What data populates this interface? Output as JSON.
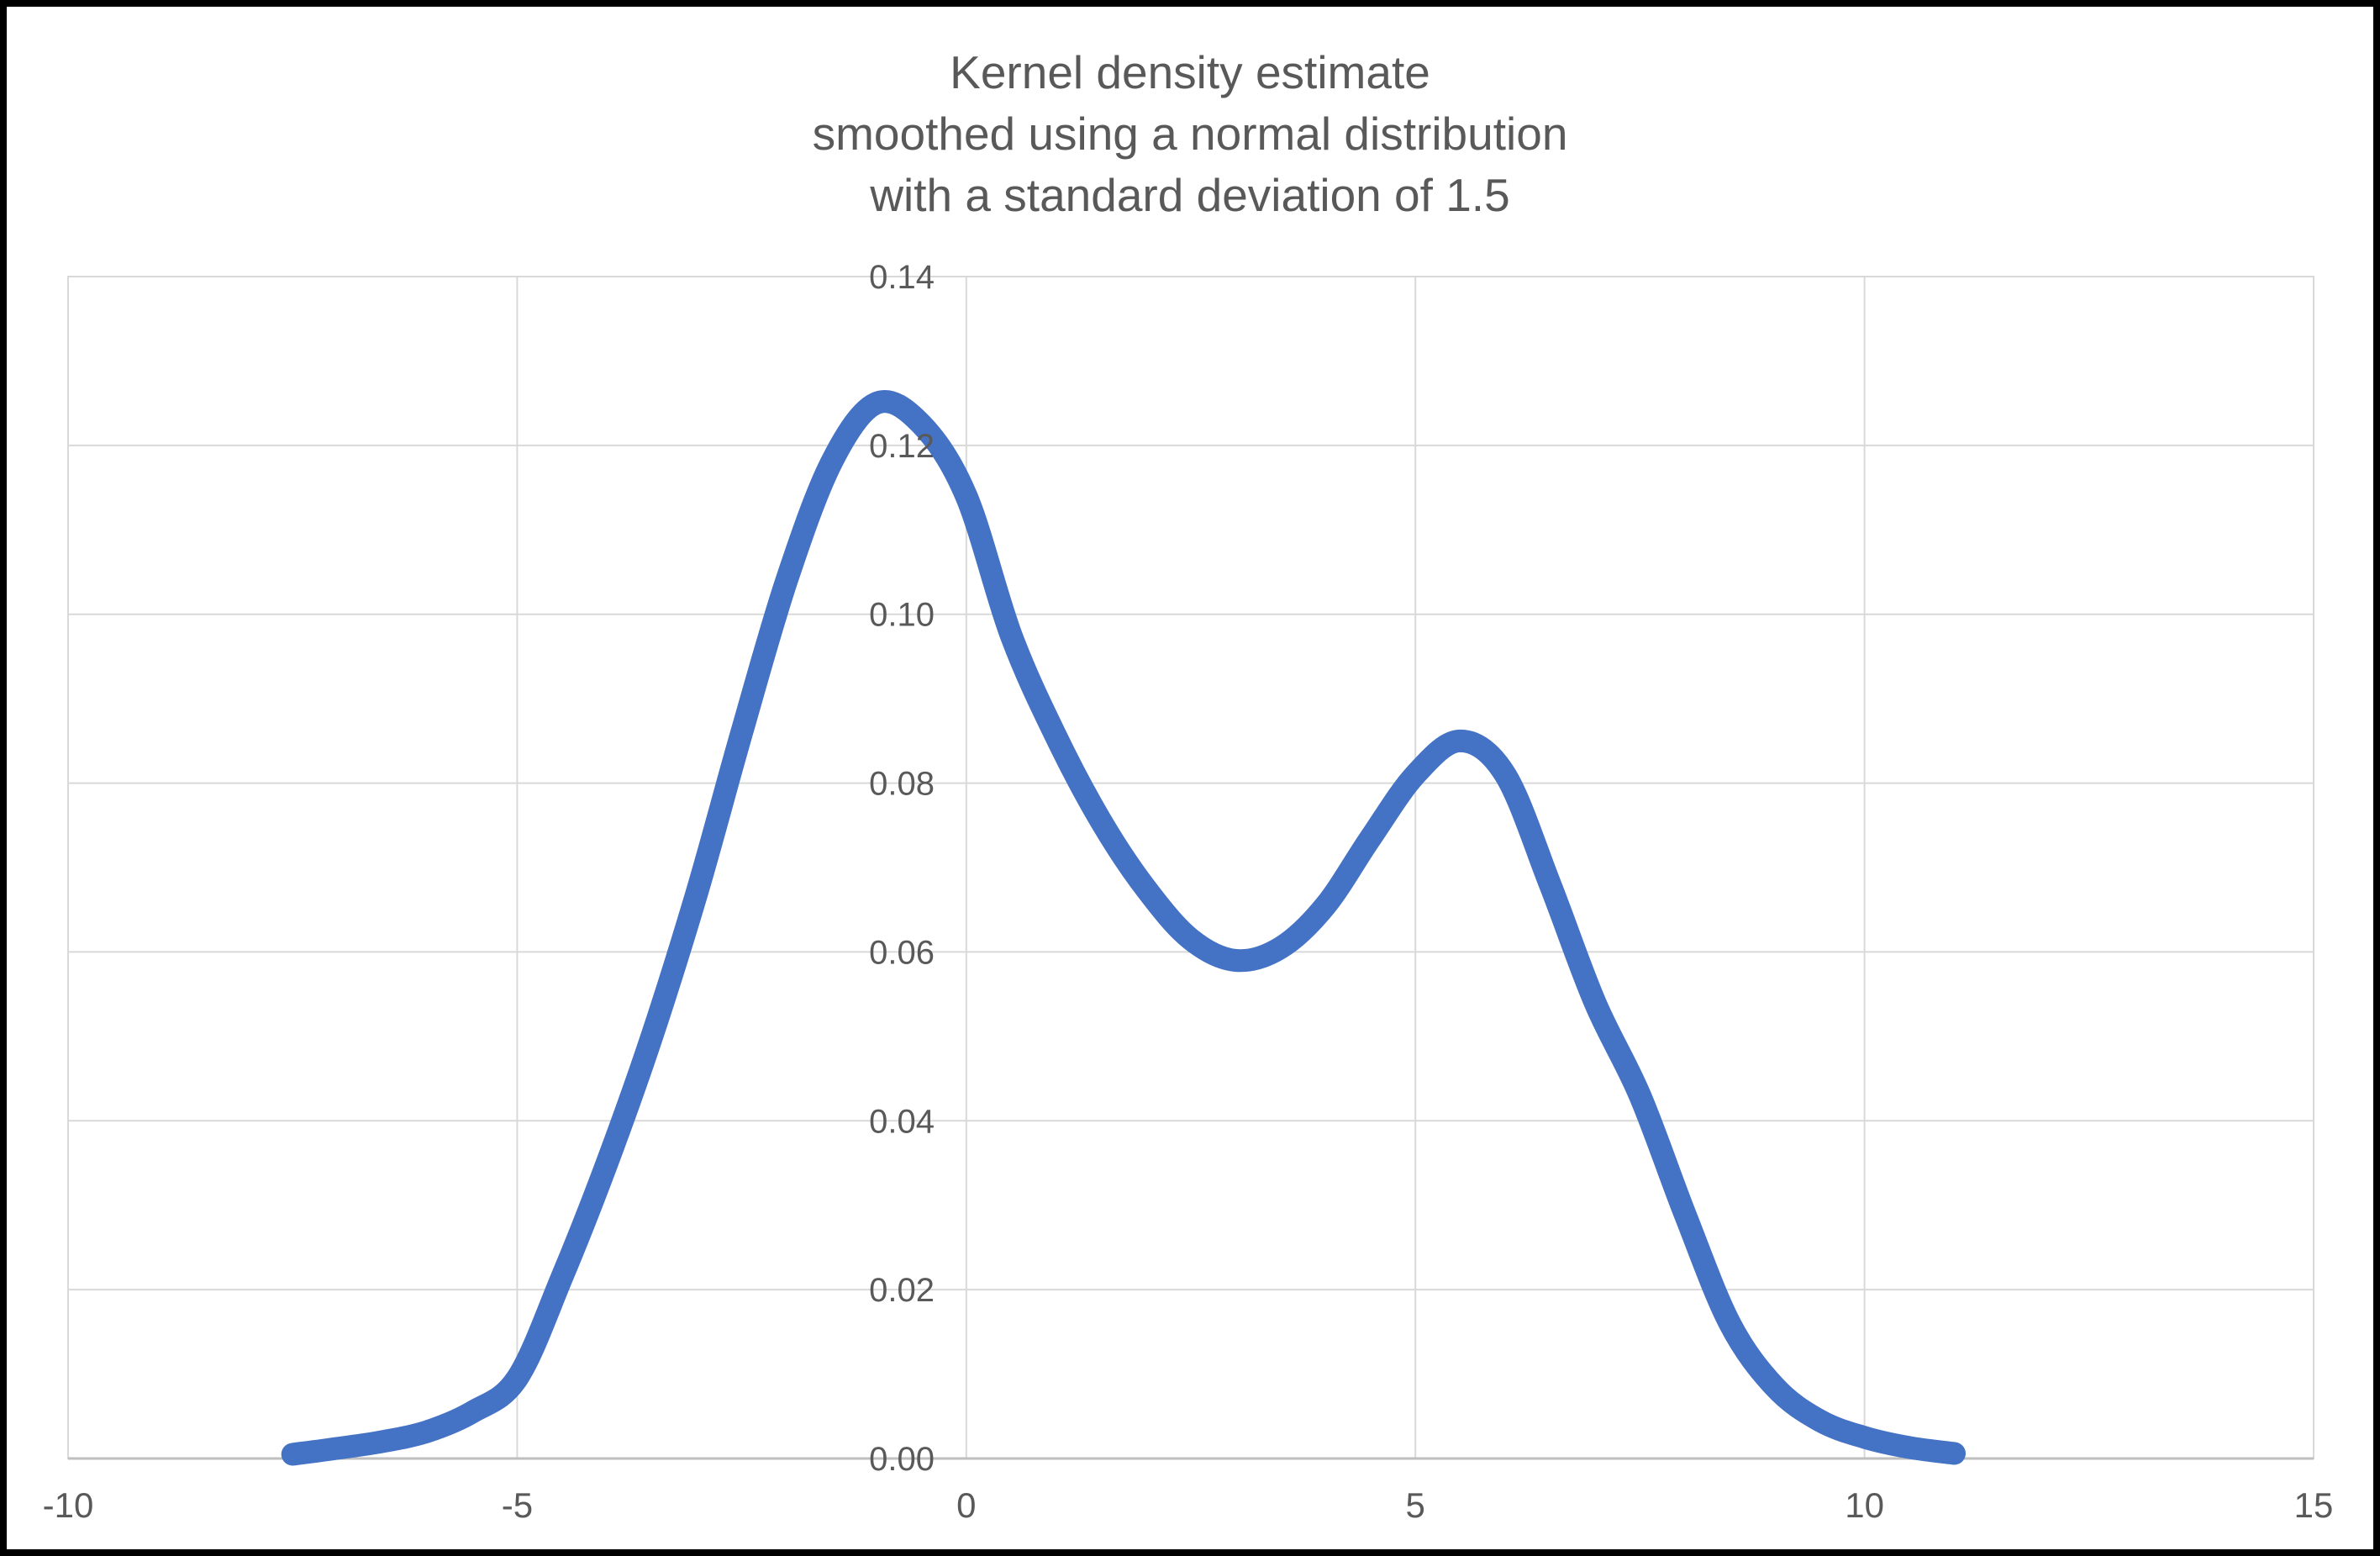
{
  "window": {
    "background": "#FFFFFF",
    "border_color": "#000000"
  },
  "chart_data": {
    "type": "line",
    "title": "Kernel density estimate smoothed using a normal distribution with a standard deviation of 1.5",
    "title_lines": [
      "Kernel density estimate",
      "smoothed using a normal distribution",
      "with a standard deviation of 1.5"
    ],
    "xlabel": "",
    "ylabel": "",
    "xlim": [
      -10,
      15
    ],
    "ylim": [
      0,
      0.14
    ],
    "x_ticks": [
      "-10",
      "-5",
      "0",
      "5",
      "10",
      "15"
    ],
    "x_tick_values": [
      -10,
      -5,
      0,
      5,
      10,
      15
    ],
    "y_ticks": [
      "0.00",
      "0.02",
      "0.04",
      "0.06",
      "0.08",
      "0.10",
      "0.12",
      "0.14"
    ],
    "y_tick_values": [
      0,
      0.02,
      0.04,
      0.06,
      0.08,
      0.1,
      0.12,
      0.14
    ],
    "grid": true,
    "legend_position": "none",
    "series": [
      {
        "name": "Kernel density estimate",
        "color": "#4472C4",
        "stroke_width_px": 27,
        "points": [
          [
            -7.5,
            0.0005
          ],
          [
            -7.0,
            0.0012
          ],
          [
            -6.5,
            0.002
          ],
          [
            -6.0,
            0.0032
          ],
          [
            -5.5,
            0.0055
          ],
          [
            -5.0,
            0.0095
          ],
          [
            -4.5,
            0.0215
          ],
          [
            -4.0,
            0.035
          ],
          [
            -3.5,
            0.05
          ],
          [
            -3.0,
            0.067
          ],
          [
            -2.5,
            0.086
          ],
          [
            -2.0,
            0.104
          ],
          [
            -1.5,
            0.118
          ],
          [
            -1.0,
            0.125
          ],
          [
            -0.5,
            0.1225
          ],
          [
            0.0,
            0.114
          ],
          [
            0.5,
            0.0975
          ],
          [
            1.0,
            0.0855
          ],
          [
            1.5,
            0.0755
          ],
          [
            2.0,
            0.0675
          ],
          [
            2.5,
            0.0615
          ],
          [
            3.0,
            0.059
          ],
          [
            3.5,
            0.0605
          ],
          [
            4.0,
            0.0655
          ],
          [
            4.5,
            0.0735
          ],
          [
            5.0,
            0.081
          ],
          [
            5.5,
            0.085
          ],
          [
            6.0,
            0.081
          ],
          [
            6.5,
            0.068
          ],
          [
            7.0,
            0.054
          ],
          [
            7.5,
            0.043
          ],
          [
            8.0,
            0.029
          ],
          [
            8.5,
            0.016
          ],
          [
            9.0,
            0.0085
          ],
          [
            9.5,
            0.0045
          ],
          [
            10.0,
            0.0025
          ],
          [
            10.5,
            0.0013
          ],
          [
            11.0,
            0.0006
          ]
        ]
      }
    ],
    "features": {
      "peak_1": [
        -1.0,
        0.125
      ],
      "local_minimum": [
        3.0,
        0.059
      ],
      "peak_2": [
        5.5,
        0.085
      ],
      "data_x_range": [
        -7.5,
        11.0
      ]
    }
  },
  "styles": {
    "title_color": "#595959",
    "tick_color": "#595959",
    "gridline_color": "#D9D9D9",
    "axis_line_color": "#BFBFBF",
    "plot_background": "#FFFFFF"
  }
}
